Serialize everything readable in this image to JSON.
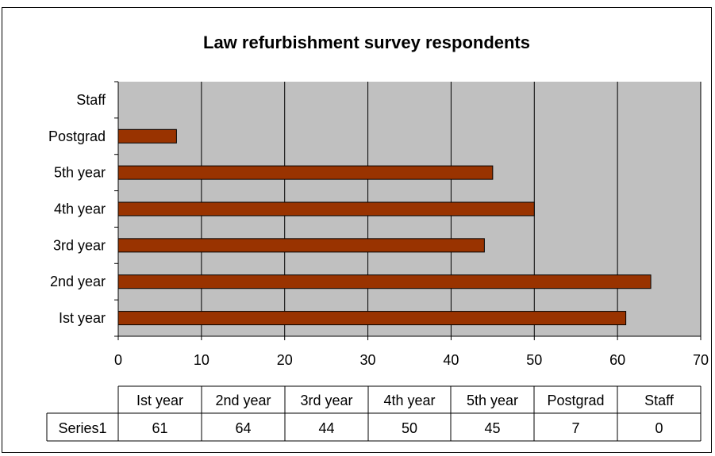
{
  "chart_data": {
    "type": "bar",
    "orientation": "horizontal",
    "title": "Law refurbishment survey respondents",
    "categories": [
      "Ist year",
      "2nd year",
      "3rd year",
      "4th year",
      "5th year",
      "Postgrad",
      "Staff"
    ],
    "series": [
      {
        "name": "Series1",
        "values": [
          61,
          64,
          44,
          50,
          45,
          7,
          0
        ]
      }
    ],
    "xlim": [
      0,
      70
    ],
    "x_ticks": [
      0,
      10,
      20,
      30,
      40,
      50,
      60,
      70
    ],
    "grid": true,
    "legend": "none",
    "data_table": true,
    "colors": {
      "bar_fill": "#993300",
      "plot_background": "#c0c0c0",
      "gridline": "#000000"
    }
  }
}
